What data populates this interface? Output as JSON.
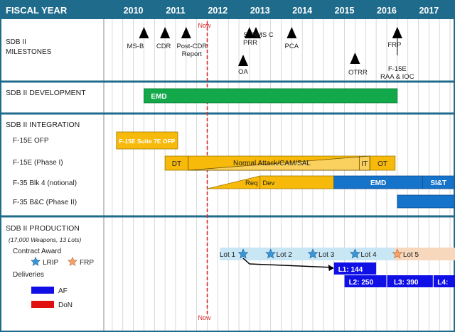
{
  "header": {
    "fiscal_year_label": "FISCAL YEAR",
    "years": [
      "2010",
      "2011",
      "2012",
      "2013",
      "2014",
      "2015",
      "2016",
      "2017"
    ]
  },
  "now_label": "Now",
  "sections": {
    "milestones": [
      "SDB II",
      "MILESTONES"
    ],
    "development": "SDB II DEVELOPMENT",
    "integration": "SDB II INTEGRATION",
    "production": "SDB II PRODUCTION",
    "production_sub": "(17,000 Weapons, 13 Lots)"
  },
  "integration_rows": [
    "F-15E OFP",
    "F-15E (Phase I)",
    "F-35 Blk 4 (notional)",
    "F-35 B&C (Phase II)"
  ],
  "legend": {
    "contract_award": "Contract Award",
    "lrip": "LRIP",
    "frp": "FRP",
    "deliveries": "Deliveries",
    "af": "AF",
    "don": "DoN"
  },
  "colors": {
    "header_bg": "#1f6b8c",
    "gold": "#f7b90a",
    "green": "#13a94b",
    "blue": "#1573c9",
    "delivery_blue": "#1010e6",
    "don_red": "#e00f10",
    "lrip_band": "#c9e6f5",
    "frp_band": "#f8d8bd",
    "star_lrip": "#3a96d6",
    "star_frp": "#f4a26a",
    "now_line": "#d62828"
  },
  "chart_data": {
    "type": "gantt",
    "x_axis": "Fiscal Year",
    "xlim": [
      2009.3,
      2017.6
    ],
    "now": 2011.75,
    "milestones": [
      {
        "label": "MS-B",
        "date": 2010.25
      },
      {
        "label": "CDR",
        "date": 2010.75
      },
      {
        "label": "Post-CDR Report",
        "date": 2011.25
      },
      {
        "label": "SVR PRR",
        "date": 2012.6
      },
      {
        "label": "OA",
        "date": 2012.6
      },
      {
        "label": "MS C",
        "date": 2012.95
      },
      {
        "label": "PCA",
        "date": 2013.75
      },
      {
        "label": "OTRR",
        "date": 2015.25
      },
      {
        "label": "FRP",
        "date": 2016.25
      },
      {
        "label": "F-15E RAA & IOC",
        "date": 2016.25
      }
    ],
    "development": [
      {
        "label": "EMD",
        "start": 2010.25,
        "end": 2016.25
      }
    ],
    "integration": {
      "f15e_ofp": [
        {
          "label": "F-15E Suite 7E OFP",
          "start": 2009.6,
          "end": 2011.05
        }
      ],
      "f15e_phase1": [
        {
          "label": "DT",
          "start": 2010.75,
          "end": 2011.3
        },
        {
          "label": "Normal Attack/CAM/SAL",
          "start": 2011.3,
          "end": 2015.6,
          "ramp": true
        },
        {
          "label": "IT",
          "start": 2015.35,
          "end": 2015.6
        },
        {
          "label": "OT",
          "start": 2015.6,
          "end": 2016.2
        }
      ],
      "f35_blk4": [
        {
          "label": "Req",
          "start": 2011.75,
          "end": 2013.0,
          "ramp": true
        },
        {
          "label": "Dev",
          "start": 2013.0,
          "end": 2014.75
        },
        {
          "label": "EMD",
          "start": 2014.75,
          "end": 2016.85
        },
        {
          "label": "SI&T",
          "start": 2016.85,
          "end": 2017.6
        }
      ],
      "f35_bc": [
        {
          "label": "",
          "start": 2016.25,
          "end": 2017.6
        }
      ]
    },
    "contract_awards": [
      {
        "label": "Lot 1",
        "date": 2012.6,
        "type": "LRIP"
      },
      {
        "label": "Lot 2",
        "date": 2013.25,
        "type": "LRIP"
      },
      {
        "label": "Lot 3",
        "date": 2014.25,
        "type": "LRIP"
      },
      {
        "label": "Lot 4",
        "date": 2015.25,
        "type": "LRIP"
      },
      {
        "label": "Lot 5",
        "date": 2016.25,
        "type": "FRP"
      }
    ],
    "deliveries": [
      {
        "label": "L1: 144",
        "start": 2014.75,
        "end": 2015.75,
        "service": "AF"
      },
      {
        "label": "L2: 250",
        "start": 2015.0,
        "end": 2016.0,
        "service": "AF"
      },
      {
        "label": "L3: 390",
        "start": 2016.0,
        "end": 2017.1,
        "service": "AF"
      },
      {
        "label": "L4:",
        "start": 2017.1,
        "end": 2017.6,
        "service": "AF"
      }
    ]
  }
}
